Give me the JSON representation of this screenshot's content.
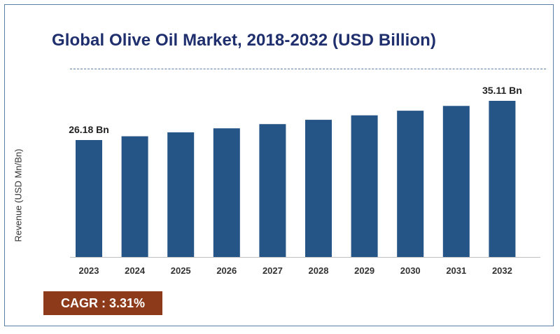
{
  "chart_data": {
    "type": "bar",
    "title": "Global Olive Oil Market, 2018-2032 (USD Billion)",
    "xlabel": "",
    "ylabel": "Revenue (USD Mn/Bn)",
    "categories": [
      "2023",
      "2024",
      "2025",
      "2026",
      "2027",
      "2028",
      "2029",
      "2030",
      "2031",
      "2032"
    ],
    "values": [
      26.18,
      27.04,
      27.93,
      28.85,
      29.81,
      30.79,
      31.81,
      32.86,
      33.95,
      35.11
    ],
    "data_labels": [
      {
        "index": 0,
        "text": "26.18 Bn"
      },
      {
        "index": 9,
        "text": "35.11 Bn"
      }
    ],
    "bar_color": "#255486",
    "grid": false,
    "legend": "none"
  },
  "cagr": {
    "text": "CAGR :  3.31%",
    "background": "#8c3a1a"
  }
}
